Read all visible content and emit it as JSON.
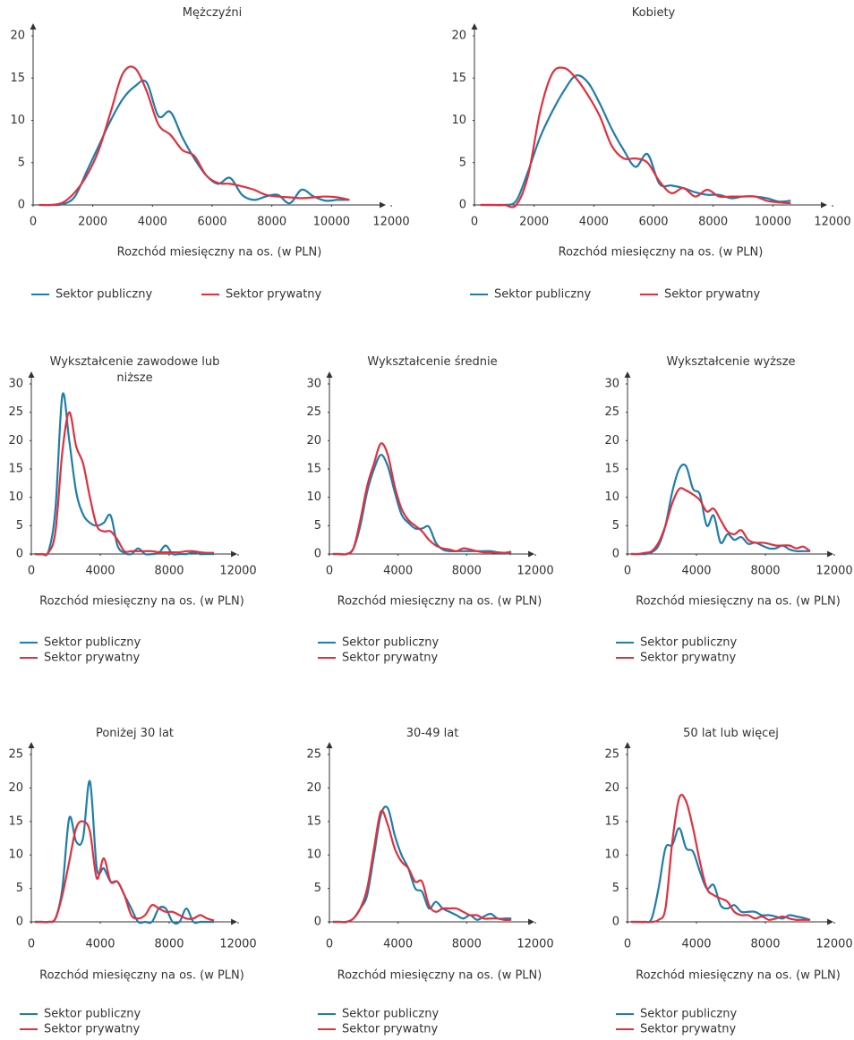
{
  "chart_data": [
    {
      "type": "line",
      "title": "Mężczyźni",
      "xlabel": "Rozchód miesięczny na os. (w PLN)",
      "x": [
        200,
        600,
        1000,
        1400,
        1800,
        2200,
        2600,
        3000,
        3400,
        3800,
        4200,
        4600,
        5000,
        5400,
        5800,
        6200,
        6600,
        7000,
        7400,
        7800,
        8200,
        8600,
        9000,
        9400,
        9800,
        10200,
        10600
      ],
      "xlim": [
        0,
        12000
      ],
      "ylim": [
        0,
        20
      ],
      "xticks": [
        0,
        2000,
        4000,
        6000,
        8000,
        10000,
        12000
      ],
      "yticks": [
        0,
        5,
        10,
        15,
        20
      ],
      "legend": "horizontal",
      "series": [
        {
          "name": "Sektor publiczny",
          "color": "#1f7dab",
          "values": [
            0,
            0,
            0.1,
            1,
            4,
            7,
            10,
            12.5,
            14,
            14.5,
            10.5,
            11,
            8,
            5.5,
            3.5,
            2.5,
            3.2,
            1.2,
            0.6,
            1,
            1.2,
            0.2,
            1.8,
            1,
            0.5,
            0.6,
            0.6
          ]
        },
        {
          "name": "Sektor prywatny",
          "color": "#e0303e",
          "values": [
            0,
            0,
            0.3,
            1.5,
            3.5,
            6.5,
            11,
            15.5,
            16.2,
            13.5,
            9.5,
            8.3,
            6.5,
            5.8,
            3.5,
            2.6,
            2.5,
            2.2,
            1.8,
            1.2,
            1,
            0.9,
            0.8,
            0.9,
            1,
            0.9,
            0.6
          ]
        }
      ]
    },
    {
      "type": "line",
      "title": "Kobiety",
      "xlabel": "Rozchód miesięczny na os. (w PLN)",
      "x": [
        200,
        600,
        1000,
        1400,
        1800,
        2200,
        2600,
        3000,
        3400,
        3800,
        4200,
        4600,
        5000,
        5400,
        5800,
        6200,
        6600,
        7000,
        7400,
        7800,
        8200,
        8600,
        9000,
        9400,
        9800,
        10200,
        10600
      ],
      "xlim": [
        0,
        12000
      ],
      "ylim": [
        0,
        20
      ],
      "xticks": [
        0,
        2000,
        4000,
        6000,
        8000,
        10000,
        12000
      ],
      "yticks": [
        0,
        5,
        10,
        15,
        20
      ],
      "legend": "horizontal",
      "series": [
        {
          "name": "Sektor publiczny",
          "color": "#1f7dab",
          "values": [
            0,
            0,
            0,
            0.5,
            4,
            8,
            11,
            13.5,
            15.3,
            14.5,
            12,
            9,
            6.5,
            4.5,
            6,
            2.5,
            2.3,
            2,
            1.5,
            1.2,
            1.2,
            0.8,
            1,
            1,
            0.8,
            0.4,
            0.5
          ]
        },
        {
          "name": "Sektor prywatny",
          "color": "#e0303e",
          "values": [
            0,
            0,
            0,
            0,
            3.5,
            11,
            15.5,
            16.2,
            15,
            13,
            10.5,
            7,
            5.5,
            5.5,
            5,
            2.8,
            1.4,
            2,
            1,
            1.8,
            1,
            1,
            1,
            1,
            0.5,
            0.3,
            0.2
          ]
        }
      ]
    },
    {
      "type": "line",
      "title": "Wykształcenie zawodowe lub niższe",
      "xlabel": "Rozchód miesięczny na os. (w PLN)",
      "x": [
        200,
        600,
        1000,
        1400,
        1800,
        2200,
        2600,
        3000,
        3400,
        3800,
        4200,
        4600,
        5000,
        5400,
        5800,
        6200,
        6600,
        7000,
        7400,
        7800,
        8200,
        8600,
        9000,
        9400,
        9800,
        10200,
        10600
      ],
      "xlim": [
        0,
        12000
      ],
      "ylim": [
        0,
        30
      ],
      "xticks": [
        0,
        4000,
        8000,
        12000
      ],
      "yticks": [
        0,
        5,
        10,
        15,
        20,
        25,
        30
      ],
      "legend": "vertical",
      "series": [
        {
          "name": "Sektor publiczny",
          "color": "#1f7dab",
          "values": [
            0,
            0,
            0.5,
            8,
            28,
            20,
            11,
            7,
            5.5,
            5,
            5.5,
            6.8,
            1.5,
            0.2,
            0,
            1,
            0,
            0,
            0.2,
            1.5,
            0,
            0,
            0,
            0.3,
            0,
            0,
            0
          ]
        },
        {
          "name": "Sektor prywatny",
          "color": "#e0303e",
          "values": [
            0,
            0,
            0.3,
            4,
            18,
            25,
            19,
            16,
            10,
            5,
            4,
            4,
            2.5,
            0.5,
            0.5,
            0.5,
            0.5,
            0.5,
            0.3,
            0.3,
            0.3,
            0.3,
            0.5,
            0.5,
            0.3,
            0.2,
            0.2
          ]
        }
      ]
    },
    {
      "type": "line",
      "title": "Wykształcenie średnie",
      "xlabel": "Rozchód miesięczny na os. (w PLN)",
      "x": [
        200,
        600,
        1000,
        1400,
        1800,
        2200,
        2600,
        3000,
        3400,
        3800,
        4200,
        4600,
        5000,
        5400,
        5800,
        6200,
        6600,
        7000,
        7400,
        7800,
        8200,
        8600,
        9000,
        9400,
        9800,
        10200,
        10600
      ],
      "xlim": [
        0,
        12000
      ],
      "ylim": [
        0,
        30
      ],
      "xticks": [
        0,
        4000,
        8000,
        12000
      ],
      "yticks": [
        0,
        5,
        10,
        15,
        20,
        25,
        30
      ],
      "legend": "vertical",
      "series": [
        {
          "name": "Sektor publiczny",
          "color": "#1f7dab",
          "values": [
            0,
            0,
            0,
            1,
            5,
            11,
            15,
            17.5,
            15.5,
            11,
            7,
            5.5,
            4.5,
            4.5,
            4.8,
            2,
            0.8,
            0.5,
            0.5,
            0.5,
            0.5,
            0.5,
            0.5,
            0.5,
            0.3,
            0.2,
            0
          ]
        },
        {
          "name": "Sektor prywatny",
          "color": "#e0303e",
          "values": [
            0,
            0,
            0,
            1,
            6,
            12,
            16,
            19.5,
            17.5,
            12,
            8,
            6,
            5,
            4,
            2.5,
            1.5,
            1,
            0.8,
            0.5,
            1,
            0.8,
            0.5,
            0.3,
            0.3,
            0.2,
            0.2,
            0.4
          ]
        }
      ]
    },
    {
      "type": "line",
      "title": "Wykształcenie wyższe",
      "xlabel": "Rozchód miesięczny na os. (w PLN)",
      "x": [
        200,
        600,
        1000,
        1400,
        1800,
        2200,
        2600,
        3000,
        3400,
        3800,
        4200,
        4600,
        5000,
        5400,
        5800,
        6200,
        6600,
        7000,
        7400,
        7800,
        8200,
        8600,
        9000,
        9400,
        9800,
        10200,
        10600
      ],
      "xlim": [
        0,
        12000
      ],
      "ylim": [
        0,
        30
      ],
      "xticks": [
        0,
        4000,
        8000,
        12000
      ],
      "yticks": [
        0,
        5,
        10,
        15,
        20,
        25,
        30
      ],
      "legend": "vertical",
      "series": [
        {
          "name": "Sektor publiczny",
          "color": "#1f7dab",
          "values": [
            0,
            0,
            0,
            0.3,
            1.5,
            5,
            11,
            15,
            15.5,
            11.5,
            10.5,
            5,
            6.8,
            2,
            3.5,
            2.5,
            3,
            1.8,
            2,
            1.5,
            1,
            1,
            1.5,
            0.8,
            0.5,
            0.5,
            0.5
          ]
        },
        {
          "name": "Sektor prywatny",
          "color": "#e0303e",
          "values": [
            0,
            0,
            0.2,
            0.5,
            2,
            5,
            9,
            11.5,
            11.2,
            10.5,
            9.5,
            7.5,
            8,
            6,
            4,
            3.5,
            4.2,
            2.5,
            2,
            2,
            1.8,
            1.5,
            1.5,
            1.5,
            1,
            1.3,
            0.5
          ]
        }
      ]
    },
    {
      "type": "line",
      "title": "Poniżej 30 lat",
      "xlabel": "Rozchód miesięczny na os. (w PLN)",
      "x": [
        200,
        600,
        1000,
        1400,
        1800,
        2200,
        2600,
        3000,
        3400,
        3800,
        4200,
        4600,
        5000,
        5400,
        5800,
        6200,
        6600,
        7000,
        7400,
        7800,
        8200,
        8600,
        9000,
        9400,
        9800,
        10200,
        10600
      ],
      "xlim": [
        0,
        12000
      ],
      "ylim": [
        0,
        25
      ],
      "xticks": [
        0,
        4000,
        8000,
        12000
      ],
      "yticks": [
        0,
        5,
        10,
        15,
        20,
        25
      ],
      "legend": "vertical",
      "series": [
        {
          "name": "Sektor publiczny",
          "color": "#1f7dab",
          "values": [
            0,
            0,
            0,
            0.5,
            5,
            15.5,
            12,
            12.5,
            21,
            8,
            8,
            6,
            6,
            4,
            2,
            0,
            0,
            0,
            2,
            2,
            0,
            0,
            2,
            0,
            0,
            0,
            0
          ]
        },
        {
          "name": "Sektor prywatny",
          "color": "#e0303e",
          "values": [
            0,
            0,
            0,
            0.5,
            4,
            9,
            14,
            15,
            13.5,
            6.5,
            9.5,
            6,
            6,
            4,
            1,
            0.5,
            1,
            2.5,
            2,
            1.5,
            1.5,
            1,
            0.5,
            0.5,
            1,
            0.5,
            0.2
          ]
        }
      ]
    },
    {
      "type": "line",
      "title": "30-49 lat",
      "xlabel": "Rozchód miesięczny na os. (w PLN)",
      "x": [
        200,
        600,
        1000,
        1400,
        1800,
        2200,
        2600,
        3000,
        3400,
        3800,
        4200,
        4600,
        5000,
        5400,
        5800,
        6200,
        6600,
        7000,
        7400,
        7800,
        8200,
        8600,
        9000,
        9400,
        9800,
        10200,
        10600
      ],
      "xlim": [
        0,
        12000
      ],
      "ylim": [
        0,
        25
      ],
      "xticks": [
        0,
        4000,
        8000,
        12000
      ],
      "yticks": [
        0,
        5,
        10,
        15,
        20,
        25
      ],
      "legend": "vertical",
      "series": [
        {
          "name": "Sektor publiczny",
          "color": "#1f7dab",
          "values": [
            0,
            0,
            0,
            0.5,
            2,
            4,
            10,
            16,
            17,
            13,
            10,
            8,
            5,
            4.5,
            2,
            3,
            2,
            1.5,
            1,
            0.5,
            1,
            0.3,
            0.8,
            1.2,
            0.5,
            0.5,
            0.5
          ]
        },
        {
          "name": "Sektor prywatny",
          "color": "#e0303e",
          "values": [
            0,
            0,
            0,
            0.5,
            2,
            5,
            11,
            16.5,
            14.5,
            11,
            9,
            8,
            6,
            6,
            2.5,
            1.5,
            2,
            2,
            2,
            1.5,
            1,
            1,
            0.5,
            0.5,
            0.5,
            0.3,
            0.3
          ]
        }
      ]
    },
    {
      "type": "line",
      "title": "50 lat lub więcej",
      "xlabel": "Rozchód miesięczny na os. (w PLN)",
      "x": [
        200,
        600,
        1000,
        1400,
        1800,
        2200,
        2600,
        3000,
        3400,
        3800,
        4200,
        4600,
        5000,
        5400,
        5800,
        6200,
        6600,
        7000,
        7400,
        7800,
        8200,
        8600,
        9000,
        9400,
        9800,
        10200,
        10600
      ],
      "xlim": [
        0,
        12000
      ],
      "ylim": [
        0,
        25
      ],
      "xticks": [
        0,
        4000,
        8000,
        12000
      ],
      "yticks": [
        0,
        5,
        10,
        15,
        20,
        25
      ],
      "legend": "vertical",
      "series": [
        {
          "name": "Sektor publiczny",
          "color": "#1f7dab",
          "values": [
            0,
            0,
            0,
            0.5,
            5,
            11,
            11.5,
            14,
            11,
            10.5,
            7.5,
            5,
            5.5,
            2.5,
            2,
            2.5,
            1.5,
            1.5,
            1.5,
            1,
            1,
            0.8,
            0.5,
            1,
            0.8,
            0.6,
            0.3
          ]
        },
        {
          "name": "Sektor prywatny",
          "color": "#e0303e",
          "values": [
            0,
            0,
            0,
            0,
            0.3,
            2,
            12,
            18.5,
            18,
            14,
            9,
            5,
            4,
            3.5,
            3,
            1.5,
            1,
            1,
            0.5,
            0.8,
            0.3,
            0.5,
            0.8,
            0.5,
            0.3,
            0.3,
            0.3
          ]
        }
      ]
    }
  ]
}
